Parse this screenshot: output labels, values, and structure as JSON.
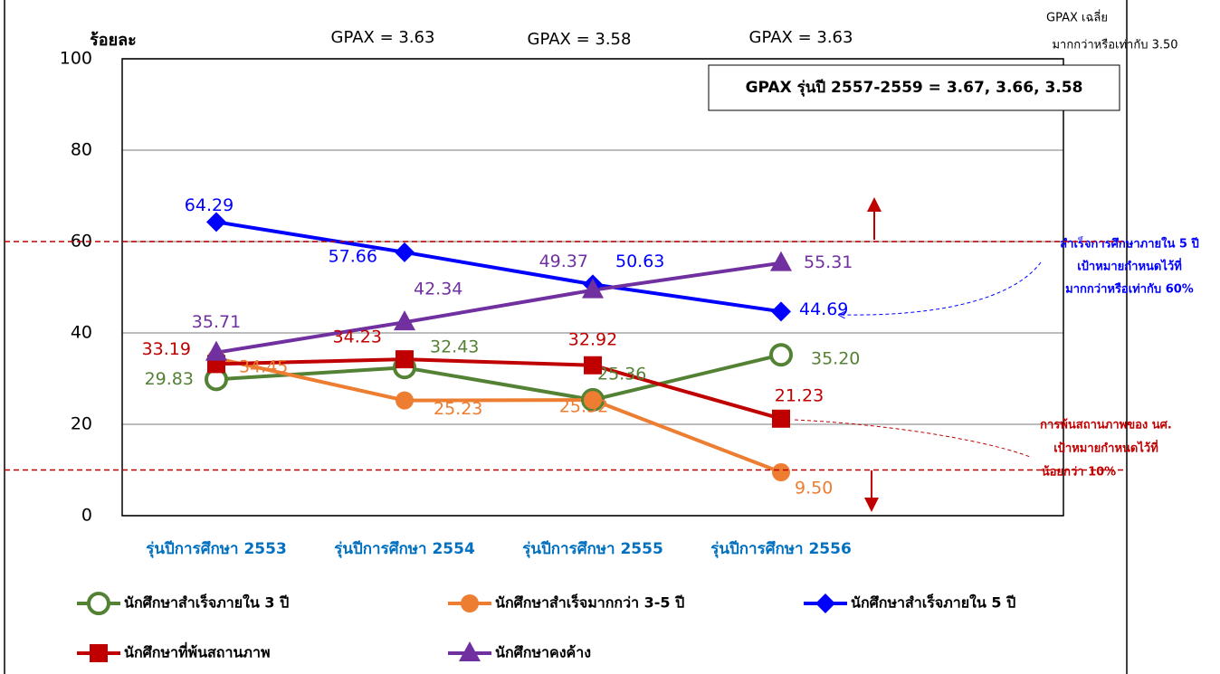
{
  "chart_data": {
    "type": "line",
    "ylabel": "ร้อยละ",
    "categories": [
      "รุ่นปีการศึกษา 2553",
      "รุ่นปีการศึกษา 2554",
      "รุ่นปีการศึกษา 2555",
      "รุ่นปีการศึกษา 2556"
    ],
    "series": [
      {
        "name": "นักศึกษาสำเร็จภายใน 3 ปี",
        "color": "#548235",
        "marker": "hollow-circle",
        "values": [
          29.83,
          32.43,
          25.36,
          35.2
        ],
        "value_labels": [
          "29.83",
          "32.43",
          "25.36",
          "35.20"
        ]
      },
      {
        "name": "นักศึกษาสำเร็จมากกว่า 3-5 ปี",
        "color": "#ed7d31",
        "marker": "circle",
        "values": [
          34.45,
          25.23,
          25.32,
          9.5
        ],
        "value_labels": [
          "34.45",
          "25.23",
          "25.32",
          "9.50"
        ]
      },
      {
        "name": "นักศึกษาสำเร็จภายใน 5 ปี",
        "color": "#0000ff",
        "marker": "diamond",
        "values": [
          64.29,
          57.66,
          50.63,
          44.69
        ],
        "value_labels": [
          "64.29",
          "57.66",
          "50.63",
          "44.69"
        ]
      },
      {
        "name": "นักศึกษาที่พ้นสถานภาพ",
        "color": "#c00000",
        "marker": "square",
        "values": [
          33.19,
          34.23,
          32.92,
          21.23
        ],
        "value_labels": [
          "33.19",
          "34.23",
          "32.92",
          "21.23"
        ]
      },
      {
        "name": "นักศึกษาคงค้าง",
        "color": "#7030a0",
        "marker": "triangle",
        "values": [
          35.71,
          42.34,
          49.37,
          55.31
        ],
        "value_labels": [
          "35.71",
          "42.34",
          "49.37",
          "55.31"
        ]
      }
    ],
    "ylim": [
      0,
      100
    ],
    "yticks": [
      0,
      20,
      40,
      60,
      80,
      100
    ],
    "grid": true,
    "reference_lines": [
      {
        "value": 60,
        "color": "#c00000"
      },
      {
        "value": 10,
        "color": "#c00000"
      }
    ],
    "gpax_labels": [
      "GPAX = 3.63",
      "GPAX = 3.58",
      "GPAX = 3.63"
    ],
    "gpax_avg_note": [
      "GPAX เฉลี่ย",
      "มากกว่าหรือเท่ากับ 3.50"
    ],
    "gpax_box": "GPAX รุ่นปี 2557-2559 = 3.67, 3.66, 3.58",
    "target_note_5yr": [
      "สำเร็จการศึกษาภายใน 5 ปี",
      "เป้าหมายกำหนดไว้ที่",
      "มากกว่าหรือเท่ากับ 60%"
    ],
    "target_note_dropout": [
      "การพ้นสถานภาพของ นศ.",
      "เป้าหมายกำหนดไว้ที่",
      "น้อยกว่า 10%"
    ]
  }
}
